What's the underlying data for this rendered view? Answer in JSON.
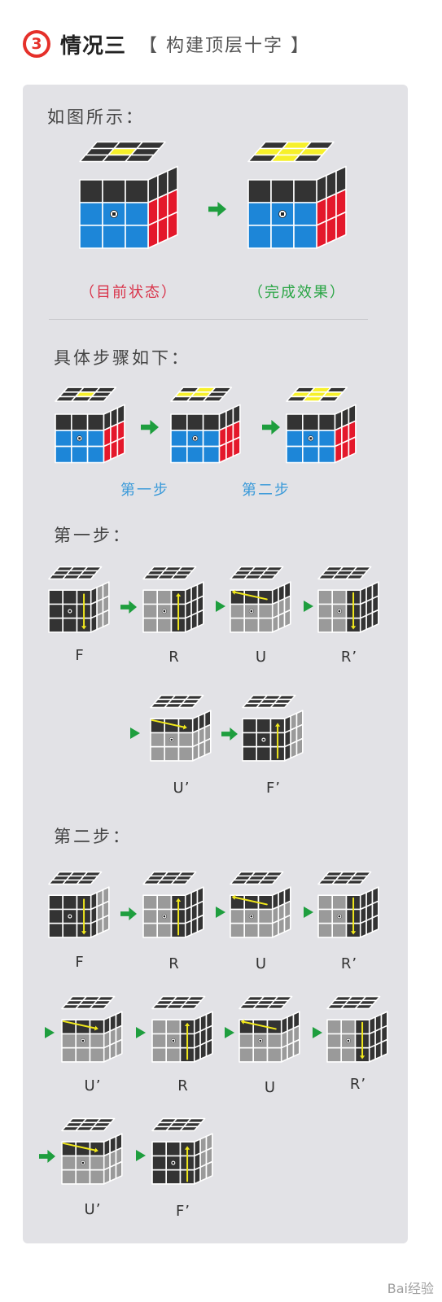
{
  "header": {
    "number": "3",
    "title": "情况三",
    "subtitle": "【 构建顶层十字 】"
  },
  "section_intro": {
    "label": "如图所示：",
    "current_caption": "（目前状态）",
    "goal_caption": "（完成效果）"
  },
  "section_steps": {
    "label": "具体步骤如下：",
    "step1_caption": "第一步",
    "step2_caption": "第二步"
  },
  "step1": {
    "label": "第一步：",
    "moves": [
      "F",
      "R",
      "U",
      "R’",
      "U’",
      "F’"
    ]
  },
  "step2": {
    "label": "第二步：",
    "moves": [
      "F",
      "R",
      "U",
      "R’",
      "U’",
      "R",
      "U",
      "R’",
      "U’",
      "F’"
    ]
  },
  "watermark": "Bai经验",
  "colors": {
    "accent_red": "#e5302a",
    "caption_red": "#d9334a",
    "caption_green": "#2aa545",
    "caption_blue": "#3a9ad9",
    "cube_blue": "#1d86d8",
    "cube_red": "#e4182b",
    "cube_yellow": "#f6f02a",
    "cube_dark": "#333333",
    "cube_gray": "#9a9a9a",
    "arrow_green": "#1e9e3e",
    "arrow_yellow": "#f2e91c"
  }
}
